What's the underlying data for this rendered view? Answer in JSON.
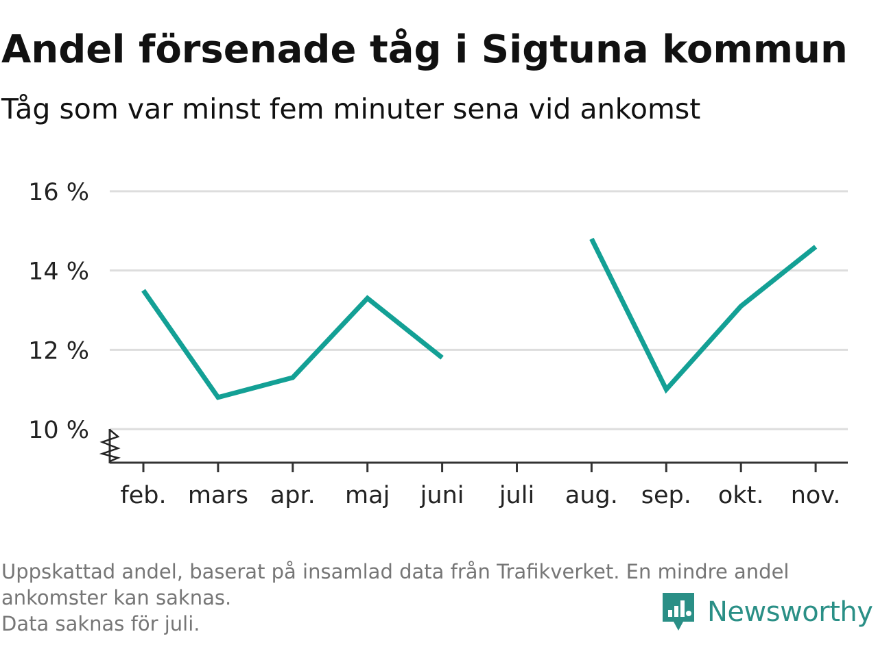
{
  "title": "Andel försenade tåg i Sigtuna kommun",
  "subtitle": "Tåg som var minst fem minuter sena vid ankomst",
  "footnote": {
    "line1": "Uppskattad andel, baserat på insamlad data från Trafikverket. En mindre andel",
    "line2": "ankomster kan saknas.",
    "line3": "Data saknas för juli."
  },
  "brand": {
    "name": "Newsworthy",
    "color": "#2a8f86",
    "icon": "newsworthy-logo-icon"
  },
  "chart_data": {
    "type": "line",
    "categories": [
      "feb.",
      "mars",
      "apr.",
      "maj",
      "juni",
      "juli",
      "aug.",
      "sep.",
      "okt.",
      "nov."
    ],
    "series": [
      {
        "values": [
          13.5,
          10.8,
          11.3,
          13.3,
          11.8,
          null,
          14.8,
          11.0,
          13.1,
          14.6
        ],
        "color": "#13a095"
      }
    ],
    "y_ticks": [
      10,
      12,
      14,
      16
    ],
    "y_tick_labels": [
      "10 %",
      "12 %",
      "14 %",
      "16 %"
    ],
    "ylim": [
      10,
      16
    ],
    "y_axis_break": true,
    "grid": true,
    "gridline_color": "#dddddd",
    "axis_color": "#333333",
    "legend": "none"
  }
}
